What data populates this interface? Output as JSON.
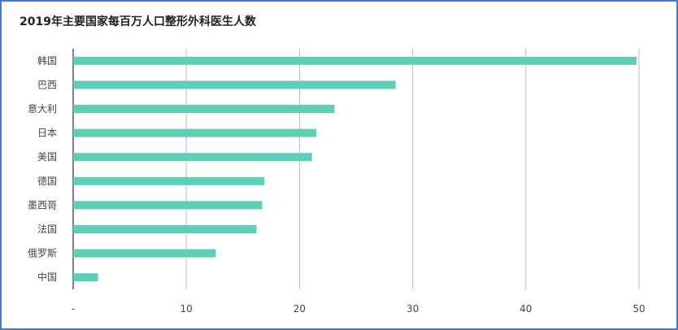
{
  "chart_data": {
    "type": "bar",
    "orientation": "horizontal",
    "title": "2019年主要国家每百万人口整形外科医生人数",
    "categories": [
      "韩国",
      "巴西",
      "意大利",
      "日本",
      "美国",
      "德国",
      "墨西哥",
      "法国",
      "俄罗斯",
      "中国"
    ],
    "values": [
      49.8,
      28.5,
      23.1,
      21.5,
      21.1,
      16.9,
      16.7,
      16.2,
      12.6,
      2.2
    ],
    "xlim": [
      0,
      50
    ],
    "ticks": [
      0,
      10,
      20,
      30,
      40,
      50
    ],
    "tick_labels": [
      "-",
      "10",
      "20",
      "30",
      "40",
      "50"
    ],
    "grid": "vertical",
    "bar_color": "#5ecfb7",
    "gridline_color": "#bbbbbb",
    "axis_color": "#555555"
  }
}
